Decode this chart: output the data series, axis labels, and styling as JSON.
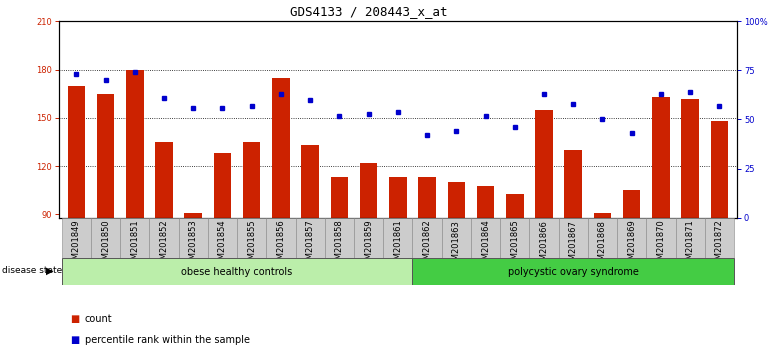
{
  "title": "GDS4133 / 208443_x_at",
  "samples": [
    "GSM201849",
    "GSM201850",
    "GSM201851",
    "GSM201852",
    "GSM201853",
    "GSM201854",
    "GSM201855",
    "GSM201856",
    "GSM201857",
    "GSM201858",
    "GSM201859",
    "GSM201861",
    "GSM201862",
    "GSM201863",
    "GSM201864",
    "GSM201865",
    "GSM201866",
    "GSM201867",
    "GSM201868",
    "GSM201869",
    "GSM201870",
    "GSM201871",
    "GSM201872"
  ],
  "counts": [
    170,
    165,
    180,
    135,
    91,
    128,
    135,
    175,
    133,
    113,
    122,
    113,
    113,
    110,
    108,
    103,
    155,
    130,
    91,
    105,
    163,
    162,
    148
  ],
  "percentiles": [
    73,
    70,
    74,
    61,
    56,
    56,
    57,
    63,
    60,
    52,
    53,
    54,
    42,
    44,
    52,
    46,
    63,
    58,
    50,
    43,
    63,
    64,
    57
  ],
  "group1_label": "obese healthy controls",
  "group1_count": 12,
  "group2_label": "polycystic ovary syndrome",
  "group2_count": 11,
  "ylim_left": [
    88,
    210
  ],
  "ylim_right": [
    0,
    100
  ],
  "yticks_left": [
    90,
    120,
    150,
    180,
    210
  ],
  "yticks_right": [
    0,
    25,
    50,
    75,
    100
  ],
  "bar_color": "#cc2200",
  "dot_color": "#0000cc",
  "group1_color": "#bbeeaa",
  "group2_color": "#44cc44",
  "disease_state_label": "disease state",
  "legend_bar_label": "count",
  "legend_dot_label": "percentile rank within the sample",
  "title_fontsize": 9,
  "tick_fontsize": 6
}
